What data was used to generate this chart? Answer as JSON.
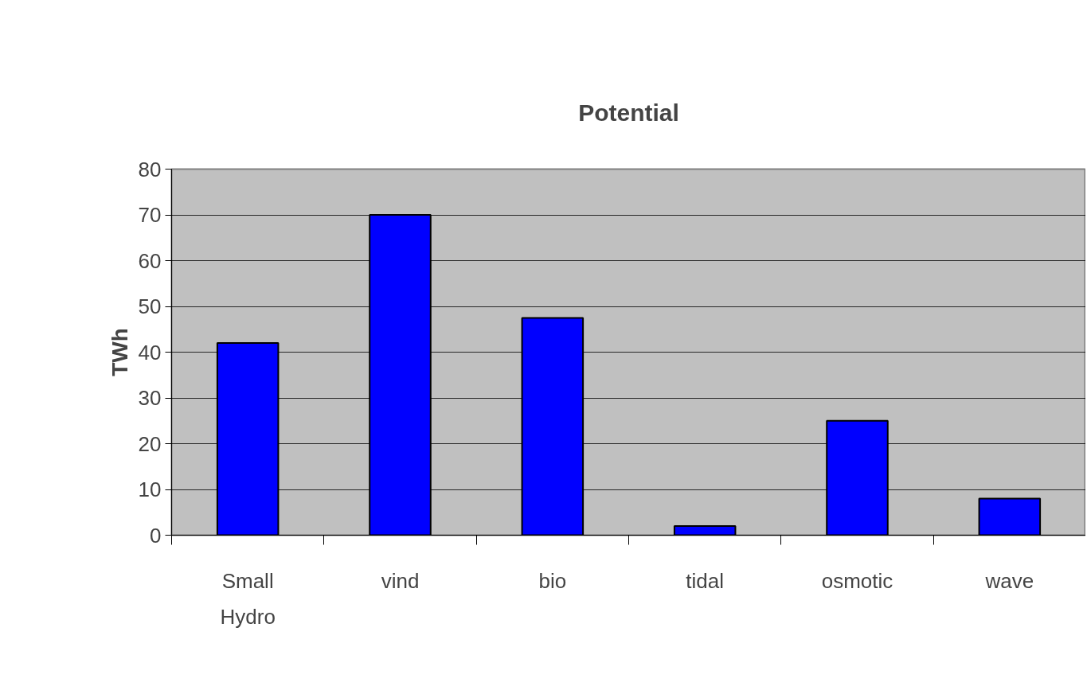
{
  "chart_data": {
    "type": "bar",
    "title": "Potential",
    "ylabel": "TWh",
    "categories": [
      "Small\nHydro",
      "vind",
      "bio",
      "tidal",
      "osmotic",
      "wave"
    ],
    "values": [
      42,
      70,
      47.5,
      2,
      25,
      8
    ],
    "color": "#0000ff",
    "ylim": [
      0,
      80
    ],
    "yticks": [
      0,
      10,
      20,
      30,
      40,
      50,
      60,
      70,
      80
    ],
    "grid": "y"
  }
}
